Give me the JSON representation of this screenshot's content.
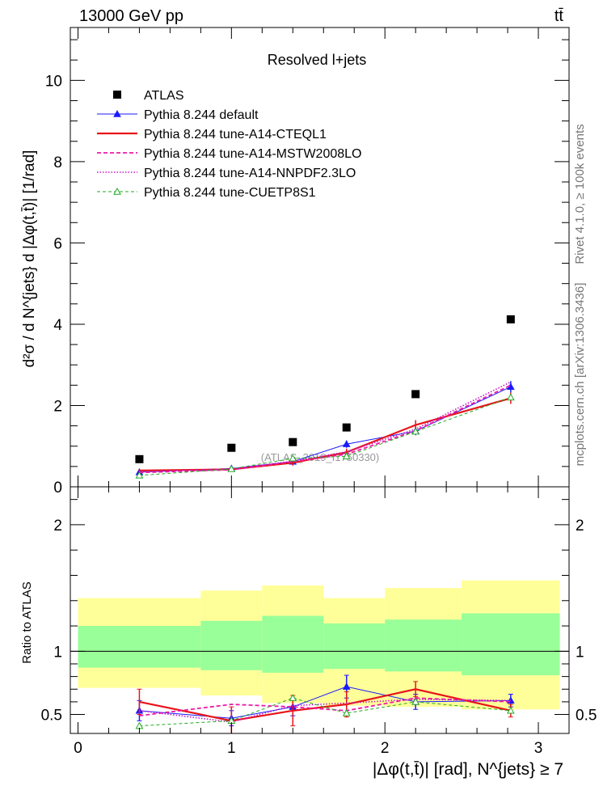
{
  "header": {
    "energy": "13000 GeV pp",
    "process": "tt̄"
  },
  "side_texts": {
    "rivet": "Rivet 4.1.0, ≥ 100k events",
    "mcplots": "mcplots.cern.ch [arXiv:1306.3436]"
  },
  "chart_data": [
    {
      "type": "scatter",
      "panel": "main",
      "title": "Resolved l+jets",
      "watermark": "(ATLAS_2019_I1750330)",
      "ylabel": "d²σ / d N^{jets} d |Δφ(t,t̄)| [1/rad]",
      "xlim": [
        -0.05,
        3.2
      ],
      "ylim": [
        0,
        11.3
      ],
      "yticks": [
        0,
        2,
        4,
        6,
        8,
        10
      ],
      "x": [
        0.4,
        1.0,
        1.4,
        1.75,
        2.2,
        2.82
      ],
      "series": [
        {
          "name": "ATLAS",
          "style": "data",
          "color": "#000000",
          "values": [
            0.68,
            0.96,
            1.1,
            1.46,
            2.28,
            4.12
          ]
        },
        {
          "name": "Pythia 8.244 default",
          "style": "blue-triangle",
          "color": "#1a1aff",
          "values": [
            0.36,
            0.45,
            0.62,
            1.05,
            1.37,
            2.46
          ],
          "errors": [
            0.05,
            0.06,
            0.07,
            0.09,
            0.1,
            0.14
          ]
        },
        {
          "name": "Pythia 8.244 tune-A14-CTEQL1",
          "style": "red-solid",
          "color": "#e8141a",
          "values": [
            0.4,
            0.43,
            0.59,
            0.85,
            1.52,
            2.18
          ],
          "errors": [
            0.05,
            0.06,
            0.07,
            0.09,
            0.12,
            0.14
          ]
        },
        {
          "name": "Pythia 8.244 tune-A14-MSTW2008LO",
          "style": "magenta-dashed",
          "color": "#ee1aa5",
          "values": [
            0.35,
            0.42,
            0.62,
            0.8,
            1.38,
            2.5
          ]
        },
        {
          "name": "Pythia 8.244 tune-A14-NNPDF2.3LO",
          "style": "magenta-dotted",
          "color": "#c21ac2",
          "values": [
            0.37,
            0.44,
            0.63,
            0.86,
            1.42,
            2.58
          ]
        },
        {
          "name": "Pythia 8.244 tune-CUETP8S1",
          "style": "green-dashed-triangle",
          "color": "#22aa22",
          "values": [
            0.28,
            0.44,
            0.7,
            0.75,
            1.36,
            2.2
          ]
        }
      ]
    },
    {
      "type": "line",
      "panel": "ratio",
      "ylabel": "Ratio to ATLAS",
      "xlabel": "|Δφ(t,t̄)| [rad], N^{jets} ≥ 7",
      "xlim": [
        -0.05,
        3.2
      ],
      "ylim": [
        0.35,
        2.3
      ],
      "yticks": [
        0.5,
        1,
        2
      ],
      "xticks": [
        0,
        1,
        2,
        3
      ],
      "bin_edges": [
        0.0,
        0.8,
        1.2,
        1.6,
        2.0,
        2.5,
        3.14
      ],
      "band_outer_yellow": {
        "lo": [
          0.71,
          0.65,
          0.59,
          0.57,
          0.56,
          0.54
        ],
        "hi": [
          1.42,
          1.48,
          1.52,
          1.42,
          1.5,
          1.56
        ]
      },
      "band_inner_green": {
        "lo": [
          0.87,
          0.85,
          0.83,
          0.86,
          0.84,
          0.81
        ],
        "hi": [
          1.2,
          1.24,
          1.28,
          1.22,
          1.25,
          1.3
        ]
      },
      "x": [
        0.4,
        1.0,
        1.4,
        1.75,
        2.2,
        2.82
      ],
      "series": [
        {
          "name": "Pythia 8.244 default",
          "color": "#1a1aff",
          "values": [
            0.53,
            0.47,
            0.56,
            0.72,
            0.6,
            0.61
          ],
          "errors": [
            0.08,
            0.06,
            0.07,
            0.09,
            0.06,
            0.05
          ]
        },
        {
          "name": "Pythia 8.244 tune-A14-CTEQL1",
          "color": "#e8141a",
          "values": [
            0.6,
            0.45,
            0.53,
            0.58,
            0.7,
            0.53
          ],
          "errors": [
            0.1,
            0.11,
            0.12,
            0.1,
            0.06,
            0.05
          ]
        },
        {
          "name": "Pythia 8.244 tune-A14-MSTW2008LO",
          "color": "#ee1aa5",
          "values": [
            0.49,
            0.58,
            0.56,
            0.53,
            0.63,
            0.6
          ]
        },
        {
          "name": "Pythia 8.244 tune-A14-NNPDF2.3LO",
          "color": "#c21ac2",
          "values": [
            0.53,
            0.44,
            0.57,
            0.59,
            0.62,
            0.61
          ]
        },
        {
          "name": "Pythia 8.244 tune-CUETP8S1",
          "color": "#22aa22",
          "values": [
            0.41,
            0.45,
            0.63,
            0.51,
            0.6,
            0.53
          ]
        }
      ]
    }
  ]
}
